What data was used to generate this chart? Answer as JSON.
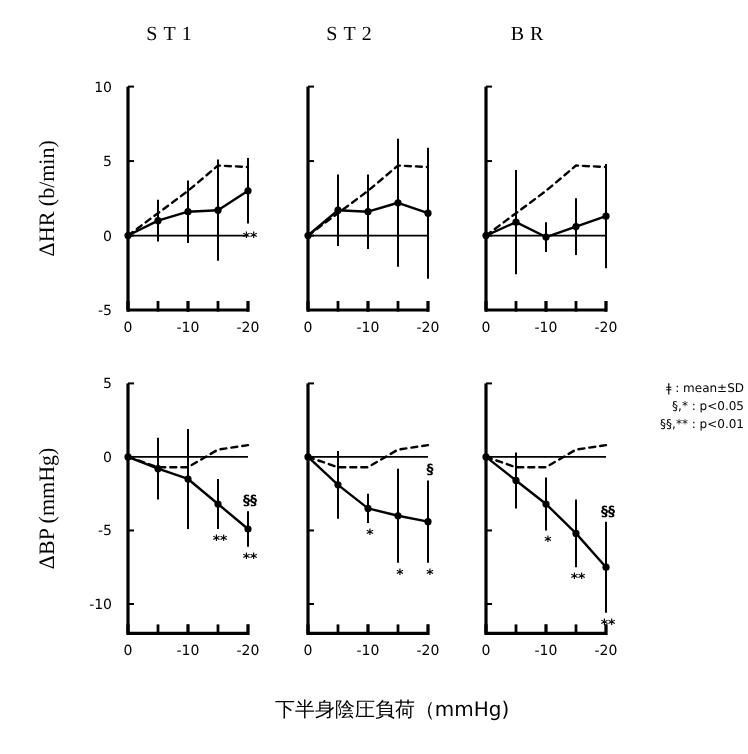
{
  "chart_data": [
    {
      "type": "line",
      "title": "ST1",
      "ylabel": "ΔHR (b/min)",
      "x": [
        0,
        -5,
        -10,
        -15,
        -20
      ],
      "xlim": [
        0,
        -20
      ],
      "xticks": [
        0,
        -10,
        -20
      ],
      "ylim": [
        -5,
        10
      ],
      "yticks": [
        -5,
        0,
        5,
        10
      ],
      "grid": false,
      "series": [
        {
          "color": "#000000",
          "marker": "circle",
          "line_style": "solid",
          "values": [
            0,
            1.0,
            1.6,
            1.7,
            3.0
          ],
          "errors": [
            null,
            1.4,
            2.1,
            3.4,
            2.2
          ]
        },
        {
          "color": "#000000",
          "marker": "none",
          "line_style": "dashed",
          "values": [
            0,
            1.5,
            3.0,
            4.7,
            4.6
          ]
        }
      ],
      "ref_lines": [
        {
          "axis": "y",
          "value": 0,
          "color": "#000000"
        }
      ],
      "annotations": [
        {
          "text": "**",
          "x": -20,
          "y": 0
        }
      ]
    },
    {
      "type": "line",
      "title": "ST2",
      "x": [
        0,
        -5,
        -10,
        -15,
        -20
      ],
      "xlim": [
        0,
        -20
      ],
      "xticks": [
        0,
        -10,
        -20
      ],
      "ylim": [
        -5,
        10
      ],
      "yticks": [
        -5,
        0,
        5,
        10
      ],
      "grid": false,
      "tick_labels": "x",
      "series": [
        {
          "color": "#000000",
          "marker": "circle",
          "line_style": "solid",
          "values": [
            0,
            1.7,
            1.6,
            2.2,
            1.5
          ],
          "errors": [
            null,
            2.4,
            2.5,
            4.3,
            4.4
          ]
        },
        {
          "color": "#000000",
          "marker": "none",
          "line_style": "dashed",
          "values": [
            0,
            1.5,
            3.0,
            4.7,
            4.6
          ]
        }
      ],
      "ref_lines": [
        {
          "axis": "y",
          "value": 0,
          "color": "#000000"
        }
      ]
    },
    {
      "type": "line",
      "title": "BR",
      "x": [
        0,
        -5,
        -10,
        -15,
        -20
      ],
      "xlim": [
        0,
        -20
      ],
      "xticks": [
        0,
        -10,
        -20
      ],
      "ylim": [
        -5,
        10
      ],
      "yticks": [
        -5,
        0,
        5,
        10
      ],
      "grid": false,
      "tick_labels": "x",
      "series": [
        {
          "color": "#000000",
          "marker": "circle",
          "line_style": "solid",
          "values": [
            0,
            0.9,
            -0.1,
            0.6,
            1.3
          ],
          "errors": [
            null,
            3.5,
            1.0,
            1.9,
            3.5
          ]
        },
        {
          "color": "#000000",
          "marker": "none",
          "line_style": "dashed",
          "values": [
            0,
            1.5,
            3.0,
            4.7,
            4.6
          ]
        }
      ],
      "ref_lines": [
        {
          "axis": "y",
          "value": 0,
          "color": "#000000"
        }
      ]
    },
    {
      "type": "line",
      "ylabel": "ΔBP (mmHg)",
      "x": [
        0,
        -5,
        -10,
        -15,
        -20
      ],
      "xlim": [
        0,
        -20
      ],
      "xticks": [
        0,
        -10,
        -20
      ],
      "ylim": [
        -12,
        5
      ],
      "yticks": [
        -10,
        -5,
        0,
        5
      ],
      "grid": false,
      "series": [
        {
          "color": "#000000",
          "marker": "circle",
          "line_style": "solid",
          "values": [
            0,
            -0.8,
            -1.5,
            -3.2,
            -4.9
          ],
          "errors": [
            null,
            2.1,
            3.4,
            1.7,
            1.2
          ]
        },
        {
          "color": "#000000",
          "marker": "none",
          "line_style": "dashed",
          "values": [
            0,
            -0.7,
            -0.7,
            0.5,
            0.8
          ]
        }
      ],
      "ref_lines": [
        {
          "axis": "y",
          "value": 0,
          "color": "#000000"
        }
      ],
      "annotations": [
        {
          "text": "§§",
          "x": -20,
          "y": -3.7
        },
        {
          "text": "**",
          "x": -15,
          "y": -4.9
        },
        {
          "text": "**",
          "x": -20,
          "y": -6.1
        }
      ]
    },
    {
      "type": "line",
      "xlabel": "下半身陰圧負荷（mmHg)",
      "x": [
        0,
        -5,
        -10,
        -15,
        -20
      ],
      "xlim": [
        0,
        -20
      ],
      "xticks": [
        0,
        -10,
        -20
      ],
      "ylim": [
        -12,
        5
      ],
      "yticks": [
        -10,
        -5,
        0,
        5
      ],
      "grid": false,
      "tick_labels": "x",
      "series": [
        {
          "color": "#000000",
          "marker": "circle",
          "line_style": "solid",
          "values": [
            0,
            -1.9,
            -3.5,
            -4.0,
            -4.4
          ],
          "errors": [
            null,
            2.3,
            1.0,
            3.2,
            2.8
          ]
        },
        {
          "color": "#000000",
          "marker": "none",
          "line_style": "dashed",
          "values": [
            0,
            -0.7,
            -0.7,
            0.5,
            0.8
          ]
        }
      ],
      "ref_lines": [
        {
          "axis": "y",
          "value": 0,
          "color": "#000000"
        }
      ],
      "annotations": [
        {
          "text": "*",
          "x": -10,
          "y": -4.5
        },
        {
          "text": "*",
          "x": -15,
          "y": -7.2
        },
        {
          "text": "*",
          "x": -20,
          "y": -7.2
        },
        {
          "text": "§",
          "x": -20,
          "y": -1.6
        }
      ]
    },
    {
      "type": "line",
      "x": [
        0,
        -5,
        -10,
        -15,
        -20
      ],
      "xlim": [
        0,
        -20
      ],
      "xticks": [
        0,
        -10,
        -20
      ],
      "ylim": [
        -12,
        5
      ],
      "yticks": [
        -10,
        -5,
        0,
        5
      ],
      "grid": false,
      "tick_labels": "x",
      "series": [
        {
          "color": "#000000",
          "marker": "circle",
          "line_style": "solid",
          "values": [
            0,
            -1.6,
            -3.2,
            -5.2,
            -7.5
          ],
          "errors": [
            null,
            1.9,
            1.8,
            2.3,
            3.1
          ]
        },
        {
          "color": "#000000",
          "marker": "none",
          "line_style": "dashed",
          "values": [
            0,
            -0.7,
            -0.7,
            0.5,
            0.8
          ]
        }
      ],
      "ref_lines": [
        {
          "axis": "y",
          "value": 0,
          "color": "#000000"
        }
      ],
      "annotations": [
        {
          "text": "*",
          "x": -10,
          "y": -5.0
        },
        {
          "text": "**",
          "x": -15,
          "y": -7.5
        },
        {
          "text": "§§",
          "x": -20,
          "y": -4.4
        },
        {
          "text": "**",
          "x": -20,
          "y": -10.6
        },
        "ǂ : mean±SD",
        "§,* : p<0.05",
        "§§,** : p<0.01"
      ]
    }
  ]
}
